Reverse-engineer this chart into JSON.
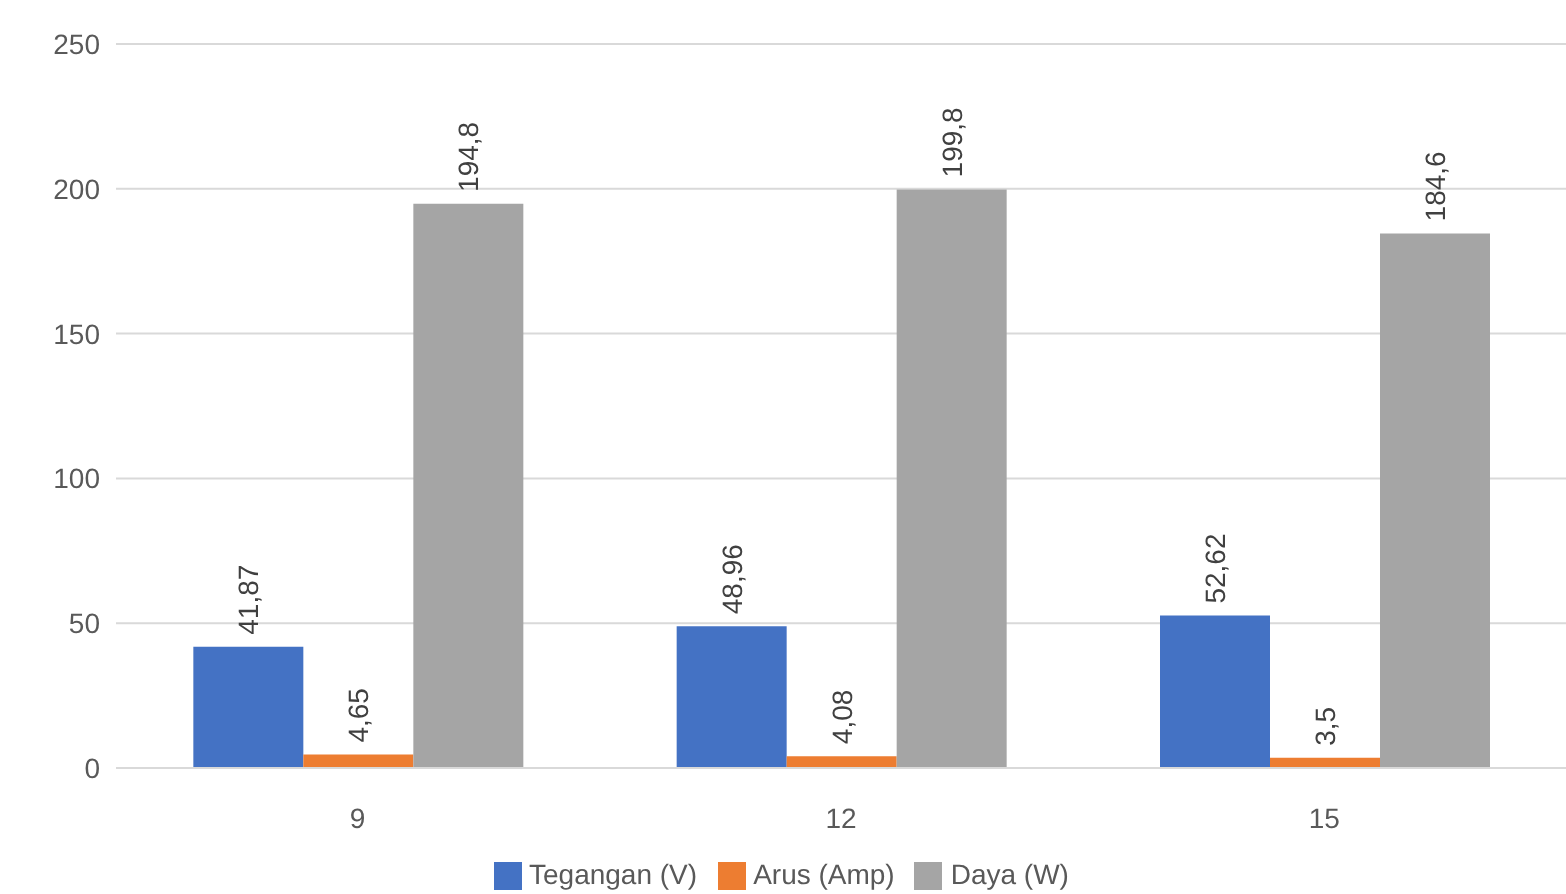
{
  "chart_data": {
    "type": "bar",
    "categories": [
      "9",
      "12",
      "15"
    ],
    "series": [
      {
        "name": "Tegangan (V)",
        "color": "#4472c4",
        "values": [
          41.87,
          48.96,
          52.62
        ],
        "value_labels": [
          "41,87",
          "48,96",
          "52,62"
        ]
      },
      {
        "name": "Arus (Amp)",
        "color": "#ed7d31",
        "values": [
          4.65,
          4.08,
          3.5
        ],
        "value_labels": [
          "4,65",
          "4,08",
          "3,5"
        ]
      },
      {
        "name": "Daya (W)",
        "color": "#a5a5a5",
        "values": [
          194.8,
          199.8,
          184.6
        ],
        "value_labels": [
          "194,8",
          "199,8",
          "184,6"
        ]
      }
    ],
    "ylim": [
      0,
      250
    ],
    "yticks": [
      0,
      50,
      100,
      150,
      200,
      250
    ],
    "grid": "y",
    "legend": "bottom"
  }
}
